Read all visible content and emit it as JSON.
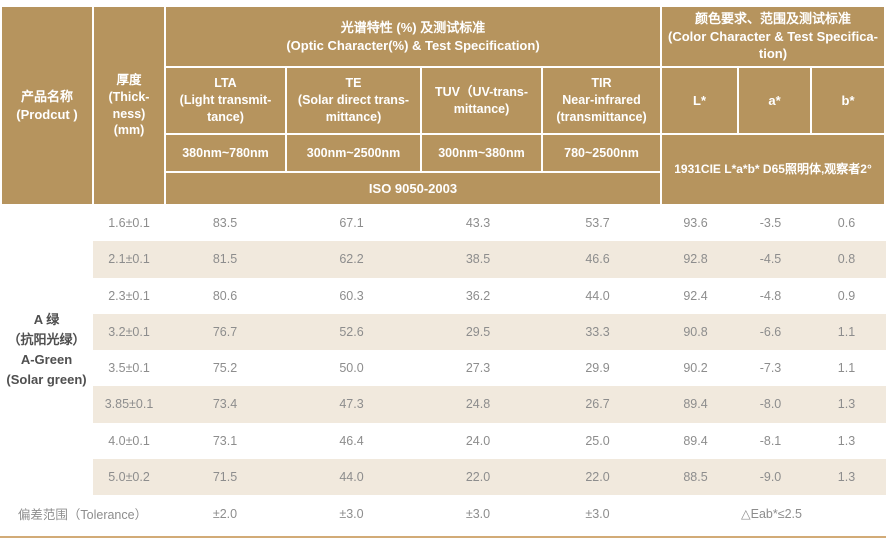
{
  "colors": {
    "header_bg": "#b6945e",
    "header_text": "#ffffff",
    "row_alt_bg": "#f1e9dd",
    "body_text": "#8d8d8d",
    "product_text": "#4f4f4f",
    "bottom_rule": "#d2ab77"
  },
  "header": {
    "product": "产品名称\n(Prodcut )",
    "thickness": "厚度\n(Thick-\nness)\n(mm)",
    "optic_group": "光谱特性 (%) 及测试标准\n(Optic Character(%) & Test Specification)",
    "color_group": "颜色要求、范围及测试标准\n(Color Character & Test Specifica-\ntion)",
    "columns": [
      {
        "label": "LTA\n(Light transmit-\ntance)",
        "range": "380nm~780nm"
      },
      {
        "label": "TE\n(Solar direct trans-\nmittance)",
        "range": "300nm~2500nm"
      },
      {
        "label": "TUV（UV-trans-\nmittance)",
        "range": "300nm~380nm"
      },
      {
        "label": "TIR\nNear-infrared\n(transmittance)",
        "range": "780~2500nm"
      }
    ],
    "lab": [
      "L*",
      "a*",
      "b*"
    ],
    "iso": "ISO 9050-2003",
    "cie": "1931CIE L*a*b* D65照明体,观察者2°"
  },
  "product_name": "A 绿\n（抗阳光绿）\nA-Green\n(Solar green)",
  "rows": [
    {
      "thickness": "1.6±0.1",
      "lta": "83.5",
      "te": "67.1",
      "tuv": "43.3",
      "tir": "53.7",
      "l": "93.6",
      "a": "-3.5",
      "b": "0.6"
    },
    {
      "thickness": "2.1±0.1",
      "lta": "81.5",
      "te": "62.2",
      "tuv": "38.5",
      "tir": "46.6",
      "l": "92.8",
      "a": "-4.5",
      "b": "0.8"
    },
    {
      "thickness": "2.3±0.1",
      "lta": "80.6",
      "te": "60.3",
      "tuv": "36.2",
      "tir": "44.0",
      "l": "92.4",
      "a": "-4.8",
      "b": "0.9"
    },
    {
      "thickness": "3.2±0.1",
      "lta": "76.7",
      "te": "52.6",
      "tuv": "29.5",
      "tir": "33.3",
      "l": "90.8",
      "a": "-6.6",
      "b": "1.1"
    },
    {
      "thickness": "3.5±0.1",
      "lta": "75.2",
      "te": "50.0",
      "tuv": "27.3",
      "tir": "29.9",
      "l": "90.2",
      "a": "-7.3",
      "b": "1.1"
    },
    {
      "thickness": "3.85±0.1",
      "lta": "73.4",
      "te": "47.3",
      "tuv": "24.8",
      "tir": "26.7",
      "l": "89.4",
      "a": "-8.0",
      "b": "1.3"
    },
    {
      "thickness": "4.0±0.1",
      "lta": "73.1",
      "te": "46.4",
      "tuv": "24.0",
      "tir": "25.0",
      "l": "89.4",
      "a": "-8.1",
      "b": "1.3"
    },
    {
      "thickness": "5.0±0.2",
      "lta": "71.5",
      "te": "44.0",
      "tuv": "22.0",
      "tir": "22.0",
      "l": "88.5",
      "a": "-9.0",
      "b": "1.3"
    }
  ],
  "tolerance": {
    "label": "偏差范围（Tolerance）",
    "lta": "±2.0",
    "te": "±3.0",
    "tuv": "±3.0",
    "tir": "±3.0",
    "lab": "△Eab*≤2.5"
  }
}
